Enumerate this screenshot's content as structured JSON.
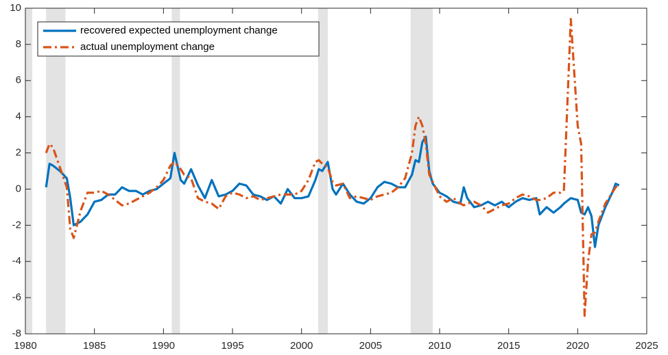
{
  "chart_data": {
    "type": "line",
    "x": [
      1981.5,
      1981.75,
      1982,
      1982.5,
      1983,
      1983.25,
      1983.5,
      1984,
      1984.5,
      1985,
      1985.5,
      1986,
      1986.5,
      1987,
      1987.5,
      1988,
      1988.5,
      1989,
      1989.5,
      1990,
      1990.5,
      1990.8,
      1991.25,
      1991.5,
      1992,
      1992.5,
      1993,
      1993.5,
      1994,
      1994.5,
      1995,
      1995.5,
      1996,
      1996.5,
      1997,
      1997.5,
      1998,
      1998.5,
      1999,
      1999.5,
      2000,
      2000.5,
      2001,
      2001.25,
      2001.5,
      2001.9,
      2002.25,
      2002.5,
      2003,
      2003.5,
      2004,
      2004.5,
      2005,
      2005.5,
      2006,
      2006.5,
      2007,
      2007.5,
      2008,
      2008.25,
      2008.5,
      2008.75,
      2009,
      2009.25,
      2009.5,
      2010,
      2010.5,
      2011,
      2011.5,
      2011.75,
      2012,
      2012.5,
      2013,
      2013.5,
      2014,
      2014.5,
      2015,
      2015.5,
      2016,
      2016.5,
      2017,
      2017.25,
      2017.75,
      2018.25,
      2018.75,
      2019,
      2019.5,
      2020,
      2020.25,
      2020.5,
      2020.75,
      2021,
      2021.25,
      2021.5,
      2022,
      2022.5,
      2022.75,
      2023
    ],
    "series": [
      {
        "name": "recovered expected unemployment change",
        "color": "#0072bd",
        "dash": "solid",
        "values": [
          0.1,
          1.4,
          1.3,
          1.0,
          0.6,
          -0.5,
          -2.0,
          -1.8,
          -1.4,
          -0.7,
          -0.6,
          -0.3,
          -0.3,
          0.1,
          -0.1,
          -0.1,
          -0.3,
          -0.1,
          0.0,
          0.3,
          0.6,
          2.0,
          0.5,
          0.3,
          1.1,
          0.2,
          -0.5,
          0.5,
          -0.4,
          -0.3,
          -0.1,
          0.3,
          0.2,
          -0.3,
          -0.4,
          -0.6,
          -0.4,
          -0.8,
          0.0,
          -0.5,
          -0.5,
          -0.4,
          0.5,
          1.1,
          1.0,
          1.5,
          0.0,
          -0.3,
          0.3,
          -0.3,
          -0.7,
          -0.8,
          -0.5,
          0.1,
          0.4,
          0.3,
          0.1,
          0.1,
          0.8,
          1.6,
          1.5,
          2.6,
          2.9,
          1.0,
          0.3,
          -0.2,
          -0.4,
          -0.7,
          -0.8,
          0.1,
          -0.5,
          -1.0,
          -0.9,
          -0.7,
          -0.9,
          -0.7,
          -1.0,
          -0.7,
          -0.5,
          -0.6,
          -0.5,
          -1.4,
          -1.0,
          -1.3,
          -1.0,
          -0.8,
          -0.5,
          -0.6,
          -1.3,
          -1.4,
          -1.0,
          -1.5,
          -3.2,
          -2.0,
          -1.0,
          -0.2,
          0.3,
          0.2
        ]
      },
      {
        "name": "actual unemployment change",
        "color": "#d95319",
        "dash": "dashdot",
        "values": [
          2.0,
          2.5,
          2.3,
          1.2,
          0.1,
          -2.2,
          -2.7,
          -1.2,
          -0.2,
          -0.2,
          -0.1,
          -0.3,
          -0.6,
          -0.9,
          -0.8,
          -0.6,
          -0.4,
          -0.2,
          0.1,
          0.5,
          1.3,
          1.5,
          1.1,
          0.8,
          0.6,
          -0.5,
          -0.7,
          -0.8,
          -1.1,
          -0.4,
          -0.2,
          -0.3,
          -0.5,
          -0.4,
          -0.6,
          -0.5,
          -0.4,
          -0.3,
          -0.3,
          -0.3,
          -0.1,
          0.5,
          1.5,
          1.6,
          1.4,
          1.2,
          0.4,
          0.2,
          0.3,
          -0.5,
          -0.4,
          -0.5,
          -0.6,
          -0.4,
          -0.3,
          -0.2,
          0.1,
          0.6,
          2.0,
          3.5,
          4.0,
          3.5,
          2.5,
          0.8,
          0.4,
          -0.4,
          -0.7,
          -0.5,
          -0.8,
          -0.9,
          -0.8,
          -0.7,
          -0.9,
          -1.3,
          -1.1,
          -0.9,
          -0.8,
          -0.5,
          -0.3,
          -0.4,
          -0.6,
          -0.6,
          -0.5,
          -0.2,
          -0.2,
          -0.1,
          9.4,
          3.5,
          2.5,
          -7.0,
          -4.0,
          -2.5,
          -2.4,
          -1.8,
          -0.8,
          -0.2,
          0.1,
          0.3
        ]
      }
    ],
    "shaded_periods": [
      [
        1980.0,
        1980.5
      ],
      [
        1981.5,
        1982.9
      ],
      [
        1990.6,
        1991.2
      ],
      [
        2001.2,
        2001.9
      ],
      [
        2007.9,
        2009.5
      ]
    ],
    "shade_color": "#e3e3e3",
    "xlim": [
      1980,
      2025
    ],
    "xticks": [
      1980,
      1985,
      1990,
      1995,
      2000,
      2005,
      2010,
      2015,
      2020,
      2025
    ],
    "ylim": [
      -8,
      10
    ],
    "yticks": [
      -8,
      -6,
      -4,
      -2,
      0,
      2,
      4,
      6,
      8,
      10
    ],
    "grid": false,
    "legend": "upper left"
  }
}
